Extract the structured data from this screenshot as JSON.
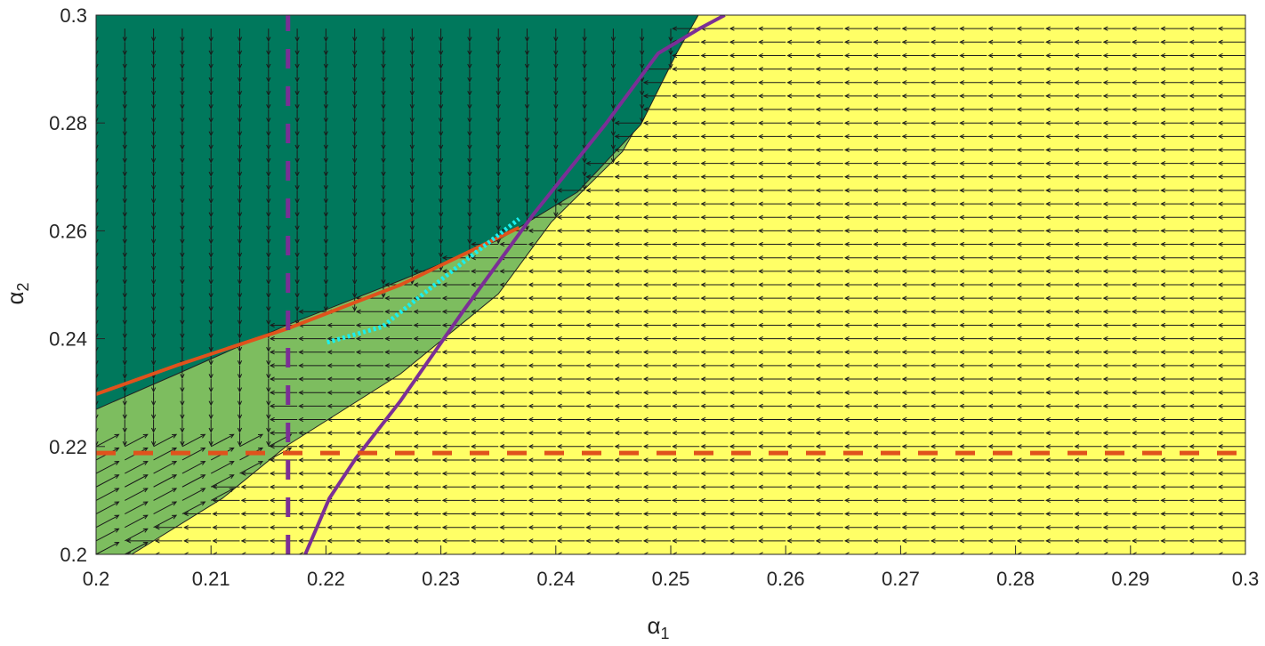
{
  "chart_data": {
    "type": "line",
    "xlabel": "α",
    "xlabel_sub": "1",
    "ylabel": "α",
    "ylabel_sub": "2",
    "xlim": [
      0.2,
      0.3
    ],
    "ylim": [
      0.2,
      0.3
    ],
    "xticks": [
      "0.2",
      "0.21",
      "0.22",
      "0.23",
      "0.24",
      "0.25",
      "0.26",
      "0.27",
      "0.28",
      "0.29",
      "0.3"
    ],
    "yticks": [
      "0.2",
      "0.22",
      "0.24",
      "0.26",
      "0.28",
      "0.3"
    ],
    "grid": false,
    "colors": {
      "dark_region": "#00785c",
      "mid_region": "#7dbd5f",
      "light_region": "#ffff66",
      "orange": "#e0521c",
      "purple": "#7b2f96",
      "cyan": "#19f0f0",
      "arrow": "#1a1a1a"
    },
    "regions": {
      "dark_boundary": [
        [
          0.2,
          0.2269
        ],
        [
          0.2071,
          0.2335
        ],
        [
          0.2167,
          0.2426
        ],
        [
          0.2265,
          0.2508
        ],
        [
          0.235,
          0.2583
        ],
        [
          0.2419,
          0.2672
        ],
        [
          0.2474,
          0.2797
        ],
        [
          0.2505,
          0.2929
        ],
        [
          0.2524,
          0.3
        ]
      ],
      "light_boundary": [
        [
          0.2031,
          0.2
        ],
        [
          0.211,
          0.2104
        ],
        [
          0.2167,
          0.2203
        ],
        [
          0.2265,
          0.2335
        ],
        [
          0.235,
          0.2483
        ],
        [
          0.2396,
          0.2616
        ],
        [
          0.2458,
          0.2747
        ],
        [
          0.2489,
          0.2863
        ],
        [
          0.2512,
          0.3
        ]
      ]
    },
    "series": [
      {
        "style": "orange-solid",
        "x": [
          0.2,
          0.2071,
          0.2167,
          0.2265,
          0.2368
        ],
        "y": [
          0.2297,
          0.2351,
          0.2419,
          0.25,
          0.2606
        ]
      },
      {
        "style": "cyan-dotted",
        "x": [
          0.2201,
          0.2249,
          0.228,
          0.2319,
          0.2368
        ],
        "y": [
          0.2393,
          0.2422,
          0.2475,
          0.2541,
          0.2622
        ]
      },
      {
        "style": "purple-solid",
        "x": [
          0.2182,
          0.2203,
          0.2226,
          0.2265,
          0.2319,
          0.2381,
          0.2443,
          0.2489,
          0.2525,
          0.2547
        ],
        "y": [
          0.2,
          0.2104,
          0.2178,
          0.2285,
          0.245,
          0.2632,
          0.2797,
          0.2929,
          0.2975,
          0.3
        ]
      },
      {
        "style": "orange-dashed",
        "x": [
          0.2,
          0.3
        ],
        "y": [
          0.2188,
          0.2188
        ]
      },
      {
        "style": "purple-dashed",
        "x": [
          0.2167,
          0.2167
        ],
        "y": [
          0.2,
          0.3
        ]
      }
    ],
    "quiver": {
      "step": 0.0025
    }
  }
}
